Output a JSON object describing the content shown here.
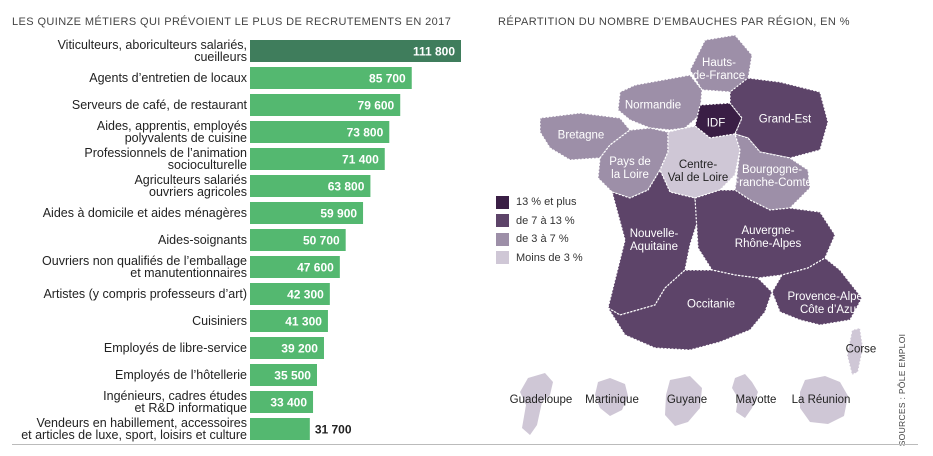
{
  "bar_title": "LES QUINZE MÉTIERS QUI PRÉVOIENT LE PLUS DE RECRUTEMENTS EN 2017",
  "map_title": "RÉPARTITION DU NOMBRE D’EMBAUCHES PAR RÉGION, EN %",
  "sources": "SOURCES : PÔLE EMPLOI",
  "colors": {
    "bar_top": "#3f7d5c",
    "bar": "#54b870",
    "cat_13plus": "#3a1e45",
    "cat_7_13": "#5d4469",
    "cat_3_7": "#9d8fa8",
    "cat_lt3": "#cfc7d6"
  },
  "chart_data": [
    {
      "type": "bar",
      "orientation": "horizontal",
      "title": "LES QUINZE MÉTIERS QUI PRÉVOIENT LE PLUS DE RECRUTEMENTS EN 2017",
      "categories": [
        "Viticulteurs, aboriculteurs salariés,\ncueilleurs",
        "Agents d’entretien de locaux",
        "Serveurs de café, de restaurant",
        "Aides, apprentis, employés\npolyvalents de cuisine",
        "Professionnels de l’animation\nsocioculturelle",
        "Agriculteurs salariés\nouvriers agricoles",
        "Aides à domicile et aides ménagères",
        "Aides-soignants",
        "Ouvriers non qualifiés de l’emballage\net manutentionnaires",
        "Artistes (y compris professeurs d’art)",
        "Cuisiniers",
        "Employés de libre-service",
        "Employés de l’hôtellerie",
        "Ingénieurs, cadres études\net R&D informatique",
        "Vendeurs en habillement, accessoires\net articles de luxe, sport, loisirs et culture"
      ],
      "values": [
        111800,
        85700,
        79600,
        73800,
        71400,
        63800,
        59900,
        50700,
        47600,
        42300,
        41300,
        39200,
        35500,
        33400,
        31700
      ],
      "value_labels": [
        "111 800",
        "85 700",
        "79 600",
        "73 800",
        "71 400",
        "63 800",
        "59 900",
        "50 700",
        "47 600",
        "42 300",
        "41 300",
        "39 200",
        "35 500",
        "33 400",
        "31 700"
      ],
      "xlim": [
        0,
        111800
      ],
      "grid": false,
      "legend": "none"
    },
    {
      "type": "choropleth",
      "title": "RÉPARTITION DU NOMBRE D’EMBAUCHES PAR RÉGION, EN %",
      "legend_placement": "left",
      "legend": [
        {
          "label": "13 % et plus",
          "category": "13plus"
        },
        {
          "label": "de 7 à 13 %",
          "category": "7_13"
        },
        {
          "label": "de 3 à 7 %",
          "category": "3_7"
        },
        {
          "label": "Moins de 3 %",
          "category": "lt3"
        }
      ],
      "regions": [
        {
          "name": "Hauts-\nde-France",
          "category": "3_7"
        },
        {
          "name": "Normandie",
          "category": "3_7"
        },
        {
          "name": "IDF",
          "category": "13plus"
        },
        {
          "name": "Grand-Est",
          "category": "7_13"
        },
        {
          "name": "Bretagne",
          "category": "3_7"
        },
        {
          "name": "Pays de\nla Loire",
          "category": "3_7"
        },
        {
          "name": "Centre-\nVal de Loire",
          "category": "lt3"
        },
        {
          "name": "Bourgogne-\nFranche-Comté",
          "category": "3_7"
        },
        {
          "name": "Nouvelle-\nAquitaine",
          "category": "7_13"
        },
        {
          "name": "Auvergne-\nRhône-Alpes",
          "category": "7_13"
        },
        {
          "name": "Occitanie",
          "category": "7_13"
        },
        {
          "name": "Provence-Alpes-\nCôte d’Azur",
          "category": "7_13"
        },
        {
          "name": "Corse",
          "category": "lt3"
        },
        {
          "name": "Guadeloupe",
          "category": "lt3"
        },
        {
          "name": "Martinique",
          "category": "lt3"
        },
        {
          "name": "Guyane",
          "category": "lt3"
        },
        {
          "name": "Mayotte",
          "category": "lt3"
        },
        {
          "name": "La Réunion",
          "category": "lt3"
        }
      ]
    }
  ]
}
